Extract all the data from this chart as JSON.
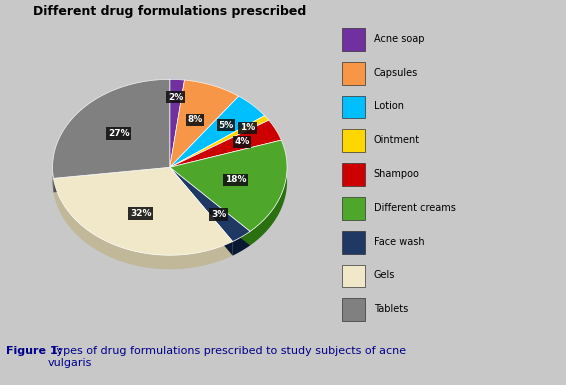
{
  "title": "Different drug formulations prescribed",
  "labels": [
    "Acne soap",
    "Capsules",
    "Lotion",
    "Ointment",
    "Shampoo",
    "Different creams",
    "Face wash",
    "Gels",
    "Tablets"
  ],
  "values": [
    2,
    8,
    5,
    1,
    4,
    18,
    3,
    32,
    27
  ],
  "colors": [
    "#7030A0",
    "#F79646",
    "#00BFFF",
    "#FFD700",
    "#CC0000",
    "#4EA72A",
    "#1F3864",
    "#F0E8C8",
    "#808080"
  ],
  "dark_colors": [
    "#4a1a6a",
    "#b06020",
    "#007090",
    "#b09000",
    "#880000",
    "#2a7010",
    "#0a1834",
    "#c0b898",
    "#505050"
  ],
  "pct_labels": [
    "2%",
    "8%",
    "5%",
    "1%",
    "4%",
    "18%",
    "3%",
    "32%",
    "27%"
  ],
  "bg_color": "#C8C8C8",
  "chart_bg": "#C8C8C8",
  "depth": 0.12,
  "startangle": 90,
  "figure_caption_bold": "Figure 1:",
  "figure_caption_rest": " Types of drug formulations prescribed to study subjects of acne\nvulgaris"
}
